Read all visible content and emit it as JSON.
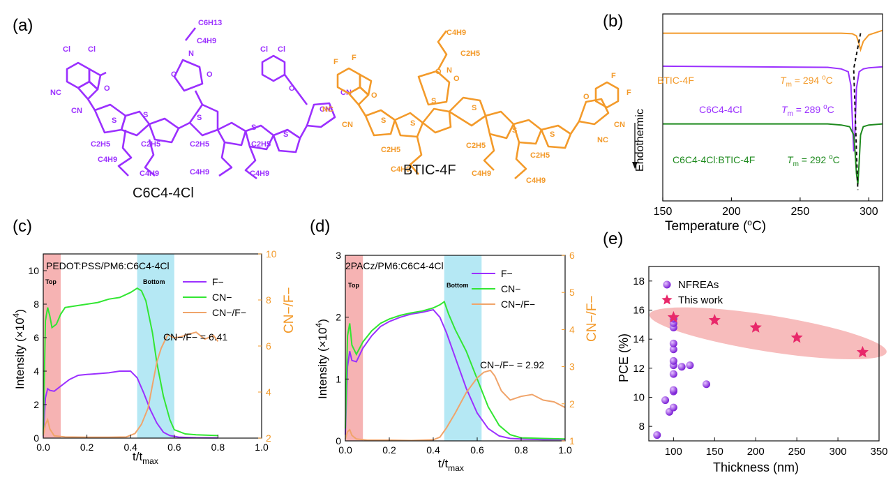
{
  "panel_labels": {
    "a": "(a)",
    "b": "(b)",
    "c": "(c)",
    "d": "(d)",
    "e": "(e)"
  },
  "molecules": {
    "c6c4": {
      "name": "C6C4-4Cl",
      "color": "#9b30ff",
      "labels": [
        "Cl",
        "Cl",
        "Cl",
        "Cl",
        "NC",
        "CN",
        "CN",
        "CN",
        "O",
        "O",
        "O",
        "O",
        "N",
        "S",
        "S",
        "S",
        "S",
        "S",
        "C6H13",
        "C4H9",
        "C2H5",
        "C4H9",
        "C2H5",
        "C4H9",
        "C2H5",
        "C4H9",
        "C2H5",
        "C4H9"
      ]
    },
    "btic": {
      "name": "BTIC-4F",
      "color": "#f39a2a",
      "labels": [
        "F",
        "F",
        "F",
        "F",
        "NC",
        "CN",
        "CN",
        "NC",
        "O",
        "O",
        "O",
        "O",
        "N",
        "S",
        "S",
        "S",
        "S",
        "S",
        "S",
        "C4H9",
        "C2H5",
        "C2H5",
        "C4H9",
        "C2H5",
        "C4H9",
        "C2H5",
        "C4H9"
      ]
    }
  },
  "chart_data": [
    {
      "panel": "(b)",
      "type": "line",
      "title": "",
      "xlabel": "Temperature (oC)",
      "ylabel": "Endothermic",
      "xlim": [
        150,
        310
      ],
      "xticks": [
        150,
        200,
        250,
        300
      ],
      "yticks_shown": false,
      "dashed_reference": {
        "x_points": [
          294,
          289,
          292
        ]
      },
      "series": [
        {
          "name": "BTIC-4F",
          "color": "#f39a2a",
          "annotation": "Tm = 294 oC",
          "tm": 294,
          "x": [
            150,
            280,
            288,
            291,
            293,
            294,
            296,
            300,
            310
          ],
          "y": [
            2.55,
            2.55,
            2.54,
            2.5,
            2.35,
            2.25,
            2.4,
            2.52,
            2.6
          ]
        },
        {
          "name": "C6C4-4Cl",
          "color": "#9b30ff",
          "annotation": "Tm = 289 oC",
          "tm": 289,
          "x": [
            150,
            270,
            280,
            285,
            287,
            288,
            289,
            290,
            291,
            293,
            296,
            300,
            310
          ],
          "y": [
            1.95,
            1.93,
            1.9,
            1.85,
            1.6,
            1.0,
            0.4,
            0.8,
            1.55,
            1.85,
            1.9,
            1.92,
            1.94
          ]
        },
        {
          "name": "C6C4-4Cl:BTIC-4F",
          "color": "#1e8a1e",
          "annotation": "Tm = 292 oC",
          "tm": 292,
          "x": [
            150,
            270,
            280,
            286,
            289,
            290,
            291,
            292,
            293,
            294,
            296,
            300,
            310
          ],
          "y": [
            0.9,
            0.9,
            0.88,
            0.85,
            0.7,
            0.4,
            0.0,
            -0.2,
            0.2,
            0.7,
            0.85,
            0.88,
            0.9
          ]
        }
      ]
    },
    {
      "panel": "(c)",
      "type": "line",
      "title": "PEDOT:PSS/PM6:C6C4-4Cl",
      "xlabel": "t/tmax",
      "ylabel": "Intensity (×10^4)",
      "y2label": "CN−/F−",
      "xlim": [
        0,
        1.0
      ],
      "xticks": [
        0.0,
        0.2,
        0.4,
        0.6,
        0.8,
        1.0
      ],
      "ylim": [
        0,
        11
      ],
      "yticks": [
        0,
        2,
        4,
        6,
        8,
        10
      ],
      "y2lim": [
        2,
        10
      ],
      "y2ticks": [
        2,
        4,
        6,
        8,
        10
      ],
      "regions": [
        {
          "label": "Top",
          "x_start": 0.0,
          "x_end": 0.08,
          "color": "#f4a6a6"
        },
        {
          "label": "Bottom",
          "x_start": 0.43,
          "x_end": 0.6,
          "color": "#a8e4f2"
        }
      ],
      "annotation": "CN−/F− = 6.41",
      "legend": [
        "F−",
        "CN−",
        "CN−/F−"
      ],
      "series": [
        {
          "name": "F−",
          "axis": "y",
          "color": "#9b30ff",
          "x": [
            0,
            0.01,
            0.02,
            0.03,
            0.05,
            0.08,
            0.12,
            0.16,
            0.2,
            0.25,
            0.3,
            0.35,
            0.4,
            0.43,
            0.46,
            0.49,
            0.52,
            0.55,
            0.58,
            0.62,
            0.65,
            0.7,
            0.8
          ],
          "y": [
            0.1,
            2.4,
            2.95,
            2.85,
            2.8,
            3.1,
            3.5,
            3.75,
            3.8,
            3.85,
            3.9,
            4.0,
            4.0,
            3.6,
            2.7,
            1.7,
            0.9,
            0.35,
            0.15,
            0.06,
            0.04,
            0.02,
            0.01
          ]
        },
        {
          "name": "CN−",
          "axis": "y",
          "color": "#32e632",
          "x": [
            0,
            0.01,
            0.02,
            0.03,
            0.04,
            0.06,
            0.08,
            0.1,
            0.15,
            0.2,
            0.25,
            0.3,
            0.35,
            0.4,
            0.43,
            0.45,
            0.47,
            0.5,
            0.52,
            0.55,
            0.58,
            0.6,
            0.65,
            0.7,
            0.8
          ],
          "y": [
            0.2,
            7.0,
            7.8,
            7.3,
            6.6,
            6.8,
            7.4,
            7.8,
            7.9,
            8.0,
            8.1,
            8.3,
            8.4,
            8.7,
            8.95,
            8.8,
            8.2,
            6.3,
            4.5,
            2.5,
            1.1,
            0.5,
            0.25,
            0.2,
            0.15
          ]
        },
        {
          "name": "CN−/F−",
          "axis": "y2",
          "color": "#f0a46a",
          "x": [
            0,
            0.01,
            0.02,
            0.03,
            0.05,
            0.1,
            0.2,
            0.3,
            0.38,
            0.42,
            0.45,
            0.48,
            0.5,
            0.52,
            0.54,
            0.56,
            0.57,
            0.6,
            0.63,
            0.66,
            0.7,
            0.74,
            0.78,
            0.8
          ],
          "y": [
            2.1,
            2.6,
            2.8,
            2.4,
            2.1,
            2.05,
            2.04,
            2.04,
            2.05,
            2.2,
            2.6,
            3.3,
            4.3,
            5.3,
            5.9,
            6.3,
            6.5,
            6.35,
            6.4,
            6.5,
            6.6,
            6.3,
            6.45,
            6.2
          ]
        }
      ]
    },
    {
      "panel": "(d)",
      "type": "line",
      "title": "2PACz/PM6:C6C4-4Cl",
      "xlabel": "t/tmax",
      "ylabel": "Intensity (×10^4)",
      "y2label": "CN−/F−",
      "xlim": [
        0,
        1.0
      ],
      "xticks": [
        0.0,
        0.2,
        0.4,
        0.6,
        0.8,
        1.0
      ],
      "ylim": [
        0,
        3
      ],
      "yticks": [
        0,
        1,
        2,
        3
      ],
      "y2lim": [
        1,
        6
      ],
      "y2ticks": [
        1,
        2,
        3,
        4,
        5,
        6
      ],
      "regions": [
        {
          "label": "Top",
          "x_start": 0.0,
          "x_end": 0.08,
          "color": "#f4a6a6"
        },
        {
          "label": "Bottom",
          "x_start": 0.45,
          "x_end": 0.62,
          "color": "#a8e4f2"
        }
      ],
      "annotation": "CN−/F− = 2.92",
      "legend": [
        "F−",
        "CN−",
        "CN−/F−"
      ],
      "series": [
        {
          "name": "F−",
          "axis": "y",
          "color": "#9b30ff",
          "x": [
            0,
            0.01,
            0.02,
            0.03,
            0.05,
            0.08,
            0.12,
            0.16,
            0.2,
            0.25,
            0.3,
            0.35,
            0.4,
            0.43,
            0.46,
            0.5,
            0.55,
            0.6,
            0.65,
            0.7,
            0.75,
            0.8,
            0.9,
            1.0
          ],
          "y": [
            0.1,
            1.2,
            1.45,
            1.3,
            1.28,
            1.5,
            1.7,
            1.85,
            1.93,
            2.0,
            2.05,
            2.08,
            2.12,
            2.0,
            1.75,
            1.35,
            0.85,
            0.45,
            0.2,
            0.08,
            0.04,
            0.03,
            0.02,
            0.02
          ]
        },
        {
          "name": "CN−",
          "axis": "y",
          "color": "#32e632",
          "x": [
            0,
            0.01,
            0.02,
            0.03,
            0.05,
            0.08,
            0.12,
            0.16,
            0.2,
            0.25,
            0.3,
            0.35,
            0.4,
            0.43,
            0.45,
            0.47,
            0.5,
            0.55,
            0.6,
            0.65,
            0.7,
            0.75,
            0.8,
            0.9,
            1.0
          ],
          "y": [
            0.2,
            1.7,
            1.9,
            1.55,
            1.4,
            1.6,
            1.78,
            1.9,
            1.97,
            2.03,
            2.07,
            2.1,
            2.15,
            2.2,
            2.25,
            2.05,
            1.8,
            1.45,
            1.0,
            0.55,
            0.25,
            0.1,
            0.05,
            0.04,
            0.03
          ]
        },
        {
          "name": "CN−/F−",
          "axis": "y2",
          "color": "#f0a46a",
          "x": [
            0,
            0.01,
            0.02,
            0.03,
            0.05,
            0.1,
            0.2,
            0.3,
            0.4,
            0.43,
            0.46,
            0.5,
            0.55,
            0.6,
            0.63,
            0.66,
            0.68,
            0.71,
            0.75,
            0.8,
            0.85,
            0.9,
            0.95,
            1.0
          ],
          "y": [
            1.05,
            1.25,
            1.3,
            1.15,
            1.05,
            1.02,
            1.02,
            1.01,
            1.03,
            1.1,
            1.35,
            1.75,
            2.3,
            2.7,
            2.85,
            2.9,
            2.75,
            2.35,
            2.1,
            2.2,
            2.25,
            2.1,
            2.05,
            1.9
          ]
        }
      ]
    },
    {
      "panel": "(e)",
      "type": "scatter",
      "title": "",
      "xlabel": "Thickness (nm)",
      "ylabel": "PCE (%)",
      "xlim": [
        70,
        350
      ],
      "xticks": [
        100,
        150,
        200,
        250,
        300,
        350
      ],
      "ylim": [
        7,
        19
      ],
      "yticks": [
        8,
        10,
        12,
        14,
        16,
        18
      ],
      "highlight": "pink ellipse around This work points",
      "series": [
        {
          "name": "NFREAs",
          "marker": "sphere",
          "color": "#7b1fd6",
          "points": [
            [
              80,
              7.4
            ],
            [
              90,
              9.8
            ],
            [
              95,
              9.0
            ],
            [
              100,
              9.3
            ],
            [
              100,
              10.4
            ],
            [
              100,
              10.5
            ],
            [
              100,
              11.6
            ],
            [
              100,
              12.2
            ],
            [
              100,
              12.5
            ],
            [
              100,
              13.3
            ],
            [
              100,
              13.7
            ],
            [
              100,
              14.8
            ],
            [
              100,
              15.1
            ],
            [
              100,
              15.4
            ],
            [
              110,
              12.1
            ],
            [
              120,
              12.2
            ],
            [
              140,
              10.9
            ]
          ]
        },
        {
          "name": "This work",
          "marker": "star",
          "color": "#e8286a",
          "points": [
            [
              100,
              15.5
            ],
            [
              150,
              15.3
            ],
            [
              200,
              14.8
            ],
            [
              250,
              14.1
            ],
            [
              330,
              13.1
            ]
          ]
        }
      ]
    }
  ]
}
